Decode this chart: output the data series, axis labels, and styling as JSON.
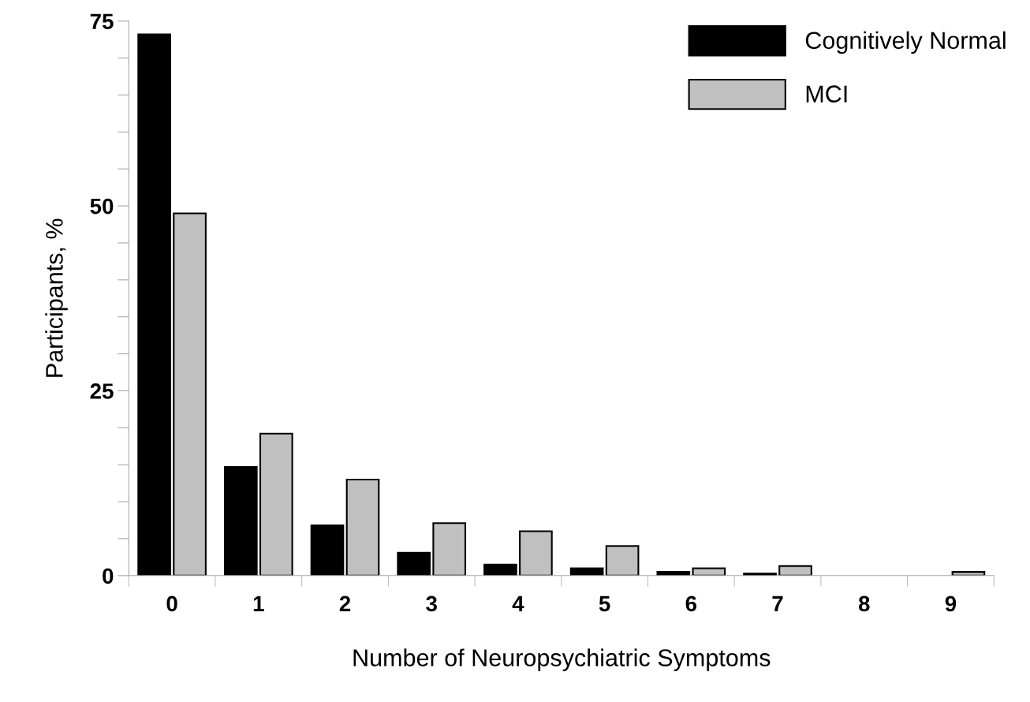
{
  "chart_data": {
    "type": "bar",
    "xlabel": "Number of Neuropsychiatric Symptoms",
    "ylabel": "Participants, %",
    "categories": [
      "0",
      "1",
      "2",
      "3",
      "4",
      "5",
      "6",
      "7",
      "8",
      "9"
    ],
    "series": [
      {
        "name": "Cognitively Normal",
        "color": "#000000",
        "values": [
          73.2,
          14.7,
          6.8,
          3.1,
          1.5,
          1.0,
          0.5,
          0.3,
          0,
          0
        ]
      },
      {
        "name": "MCI",
        "color": "#c0c0c0",
        "values": [
          49.0,
          19.2,
          13.0,
          7.1,
          6.0,
          4.0,
          1.0,
          1.3,
          0,
          0.5
        ]
      }
    ],
    "ylim": [
      0,
      75
    ],
    "yticks": [
      0,
      {
        "value": 5,
        "label": null
      },
      {
        "value": 10,
        "label": null
      },
      {
        "value": 15,
        "label": null
      },
      {
        "value": 20,
        "label": null
      },
      25,
      {
        "value": 30,
        "label": null
      },
      {
        "value": 35,
        "label": null
      },
      {
        "value": 40,
        "label": null
      },
      {
        "value": 45,
        "label": null
      },
      50,
      {
        "value": 55,
        "label": null
      },
      {
        "value": 60,
        "label": null
      },
      {
        "value": 65,
        "label": null
      },
      {
        "value": 70,
        "label": null
      },
      75
    ],
    "grid": false,
    "legend": "top right"
  }
}
